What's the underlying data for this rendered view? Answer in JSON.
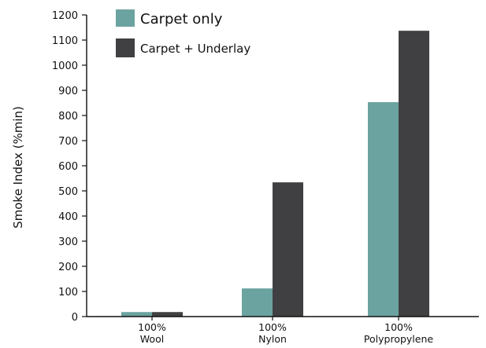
{
  "chart_data": {
    "type": "bar",
    "title": "",
    "xlabel": "",
    "ylabel": "Smoke Index (%min)",
    "ylim": [
      0,
      1200
    ],
    "yticks": [
      0,
      100,
      200,
      300,
      400,
      500,
      600,
      700,
      800,
      900,
      1000,
      1100,
      1200
    ],
    "categories": [
      [
        "100%",
        "Wool"
      ],
      [
        "100%",
        "Nylon"
      ],
      [
        "100%",
        "Polypropylene"
      ]
    ],
    "series": [
      {
        "name": "Carpet only",
        "color": "#6ba3a0",
        "values": [
          18,
          112,
          853
        ]
      },
      {
        "name": "Carpet + Underlay",
        "color": "#404042",
        "values": [
          18,
          534,
          1137
        ]
      }
    ],
    "grid": false,
    "legend_position": "top-left"
  }
}
